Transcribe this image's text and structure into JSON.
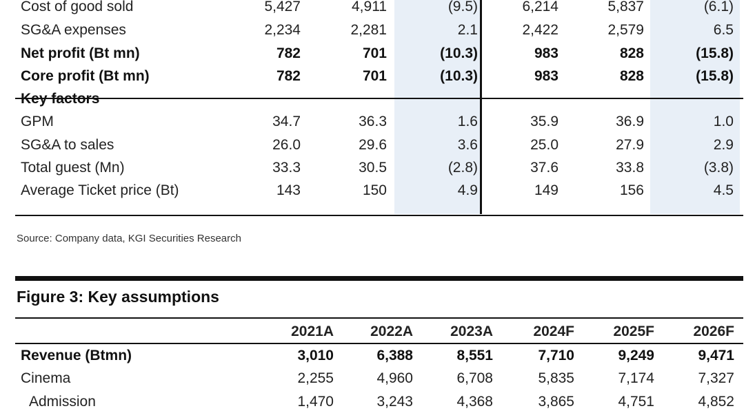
{
  "table1": {
    "rows": [
      {
        "label": "Cost of good sold",
        "values": [
          "5,427",
          "4,911",
          "(9.5)",
          "6,214",
          "5,837",
          "(6.1)"
        ],
        "bold": false
      },
      {
        "label": "SG&A expenses",
        "values": [
          "2,234",
          "2,281",
          "2.1",
          "2,422",
          "2,579",
          "6.5"
        ],
        "bold": false
      },
      {
        "label": "Net profit (Bt mn)",
        "values": [
          "782",
          "701",
          "(10.3)",
          "983",
          "828",
          "(15.8)"
        ],
        "bold": true
      },
      {
        "label": "Core profit (Bt mn)",
        "values": [
          "782",
          "701",
          "(10.3)",
          "983",
          "828",
          "(15.8)"
        ],
        "bold": true
      },
      {
        "label": "Key factors",
        "values": [
          "",
          "",
          "",
          "",
          "",
          ""
        ],
        "bold": true
      },
      {
        "label": "GPM",
        "values": [
          "34.7",
          "36.3",
          "1.6",
          "35.9",
          "36.9",
          "1.0"
        ],
        "bold": false
      },
      {
        "label": "SG&A to sales",
        "values": [
          "26.0",
          "29.6",
          "3.6",
          "25.0",
          "27.9",
          "2.9"
        ],
        "bold": false
      },
      {
        "label": "Total guest (Mn)",
        "values": [
          "33.3",
          "30.5",
          "(2.8)",
          "37.6",
          "33.8",
          "(3.8)"
        ],
        "bold": false
      },
      {
        "label": "Average Ticket price (Bt)",
        "values": [
          "143",
          "150",
          "4.9",
          "149",
          "156",
          "4.5"
        ],
        "bold": false
      }
    ]
  },
  "source": "Source: Company data, KGI Securities Research",
  "figure3": {
    "title": "Figure 3: Key assumptions",
    "headers": [
      "2021A",
      "2022A",
      "2023A",
      "2024F",
      "2025F",
      "2026F"
    ],
    "rows": [
      {
        "label": "Revenue (Btmn)",
        "values": [
          "3,010",
          "6,388",
          "8,551",
          "7,710",
          "9,249",
          "9,471"
        ],
        "bold": true
      },
      {
        "label": "Cinema",
        "values": [
          "2,255",
          "4,960",
          "6,708",
          "5,835",
          "7,174",
          "7,327"
        ],
        "bold": false
      },
      {
        "label": " Admission",
        "values": [
          "1,470",
          "3,243",
          "4,368",
          "3,865",
          "4,751",
          "4,852"
        ],
        "bold": false
      }
    ]
  }
}
